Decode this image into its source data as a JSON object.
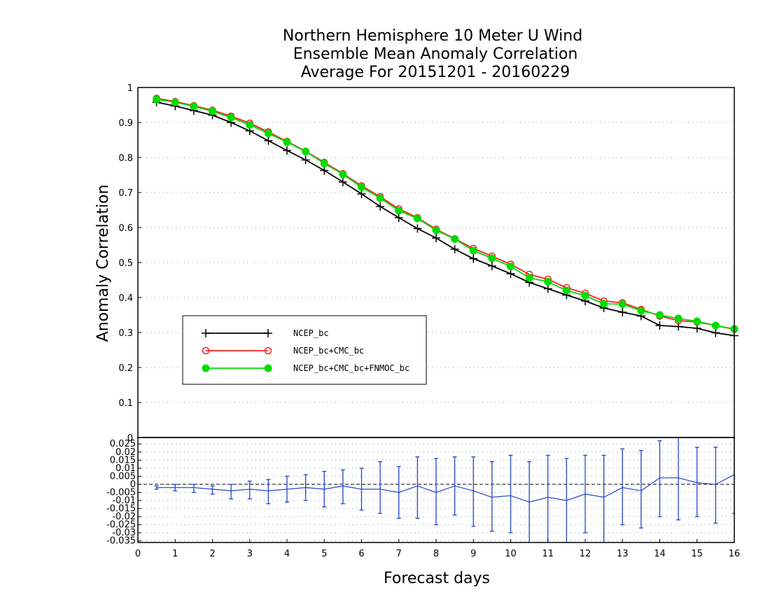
{
  "chart_data": {
    "type": "line",
    "title_lines": [
      "Northern Hemisphere 10 Meter U Wind",
      "Ensemble Mean Anomaly Correlation",
      "Average For 20151201 - 20160229"
    ],
    "xlabel": "Forecast days",
    "ylabel": "Anomaly Correlation",
    "xlim": [
      0,
      16
    ],
    "ylim": [
      0,
      1
    ],
    "x_ticks": [
      "0",
      "1",
      "2",
      "3",
      "4",
      "5",
      "6",
      "7",
      "8",
      "9",
      "10",
      "11",
      "12",
      "13",
      "14",
      "15",
      "16"
    ],
    "y_ticks": [
      "0",
      "0.1",
      "0.2",
      "0.3",
      "0.4",
      "0.5",
      "0.6",
      "0.7",
      "0.8",
      "0.9",
      "1"
    ],
    "grid": true,
    "legend_position": "lower-left",
    "x": [
      0.5,
      1,
      1.5,
      2,
      2.5,
      3,
      3.5,
      4,
      4.5,
      5,
      5.5,
      6,
      6.5,
      7,
      7.5,
      8,
      8.5,
      9,
      9.5,
      10,
      10.5,
      11,
      11.5,
      12,
      12.5,
      13,
      13.5,
      14,
      14.5,
      15,
      15.5,
      16
    ],
    "series": [
      {
        "name": "NCEP_bc",
        "color": "#000000",
        "marker": "plus",
        "values": [
          0.958,
          0.947,
          0.934,
          0.921,
          0.9,
          0.876,
          0.848,
          0.82,
          0.793,
          0.763,
          0.73,
          0.696,
          0.66,
          0.628,
          0.597,
          0.57,
          0.538,
          0.511,
          0.49,
          0.468,
          0.443,
          0.425,
          0.407,
          0.39,
          0.37,
          0.358,
          0.347,
          0.32,
          0.317,
          0.312,
          0.299,
          0.291
        ]
      },
      {
        "name": "NCEP_bc+CMC_bc",
        "color": "#ff2020",
        "marker": "open-circle",
        "values": [
          0.969,
          0.96,
          0.948,
          0.935,
          0.918,
          0.898,
          0.873,
          0.846,
          0.818,
          0.786,
          0.754,
          0.719,
          0.688,
          0.653,
          0.628,
          0.595,
          0.568,
          0.54,
          0.518,
          0.495,
          0.466,
          0.452,
          0.428,
          0.412,
          0.39,
          0.385,
          0.366,
          0.347,
          0.334,
          0.33,
          0.32,
          0.309
        ]
      },
      {
        "name": "NCEP_bc+CMC_bc+FNMOC_bc",
        "color": "#00dd00",
        "marker": "filled-circle",
        "values": [
          0.966,
          0.958,
          0.946,
          0.932,
          0.914,
          0.893,
          0.869,
          0.844,
          0.817,
          0.783,
          0.752,
          0.715,
          0.684,
          0.648,
          0.626,
          0.592,
          0.567,
          0.534,
          0.512,
          0.489,
          0.456,
          0.445,
          0.42,
          0.405,
          0.382,
          0.381,
          0.362,
          0.35,
          0.34,
          0.332,
          0.32,
          0.31
        ]
      }
    ],
    "difference_panel": {
      "type": "line-errorbar",
      "color": "#2244cc",
      "ylim": [
        -0.036,
        0.029
      ],
      "y_ticks": [
        "0.025",
        "0.02",
        "0.015",
        "0.01",
        "0.005",
        "0",
        "-0.005",
        "-0.01",
        "-0.015",
        "-0.02",
        "-0.025",
        "-0.03",
        "-0.035"
      ],
      "values": [
        -0.002,
        -0.002,
        -0.002,
        -0.003,
        -0.004,
        -0.003,
        -0.004,
        -0.003,
        -0.002,
        -0.003,
        -0.001,
        -0.003,
        -0.003,
        -0.005,
        -0.001,
        -0.005,
        -0.001,
        -0.004,
        -0.008,
        -0.007,
        -0.011,
        -0.008,
        -0.01,
        -0.006,
        -0.008,
        -0.002,
        -0.004,
        0.004,
        0.004,
        0.001,
        0.0,
        0.006
      ],
      "err_low": [
        -0.003,
        -0.004,
        -0.005,
        -0.006,
        -0.009,
        -0.009,
        -0.012,
        -0.011,
        -0.01,
        -0.014,
        -0.012,
        -0.016,
        -0.018,
        -0.021,
        -0.021,
        -0.025,
        -0.019,
        -0.026,
        -0.029,
        -0.03,
        -0.038,
        -0.038,
        -0.036,
        -0.03,
        -0.037,
        -0.025,
        -0.027,
        -0.02,
        -0.022,
        -0.02,
        -0.024,
        -0.018
      ],
      "err_high": [
        -0.001,
        0.0,
        0.0,
        -0.001,
        0.0,
        0.002,
        0.003,
        0.005,
        0.006,
        0.008,
        0.009,
        0.01,
        0.014,
        0.011,
        0.017,
        0.016,
        0.017,
        0.017,
        0.014,
        0.018,
        0.014,
        0.018,
        0.016,
        0.018,
        0.018,
        0.022,
        0.021,
        0.027,
        0.029,
        0.023,
        0.023,
        0.03
      ]
    }
  }
}
